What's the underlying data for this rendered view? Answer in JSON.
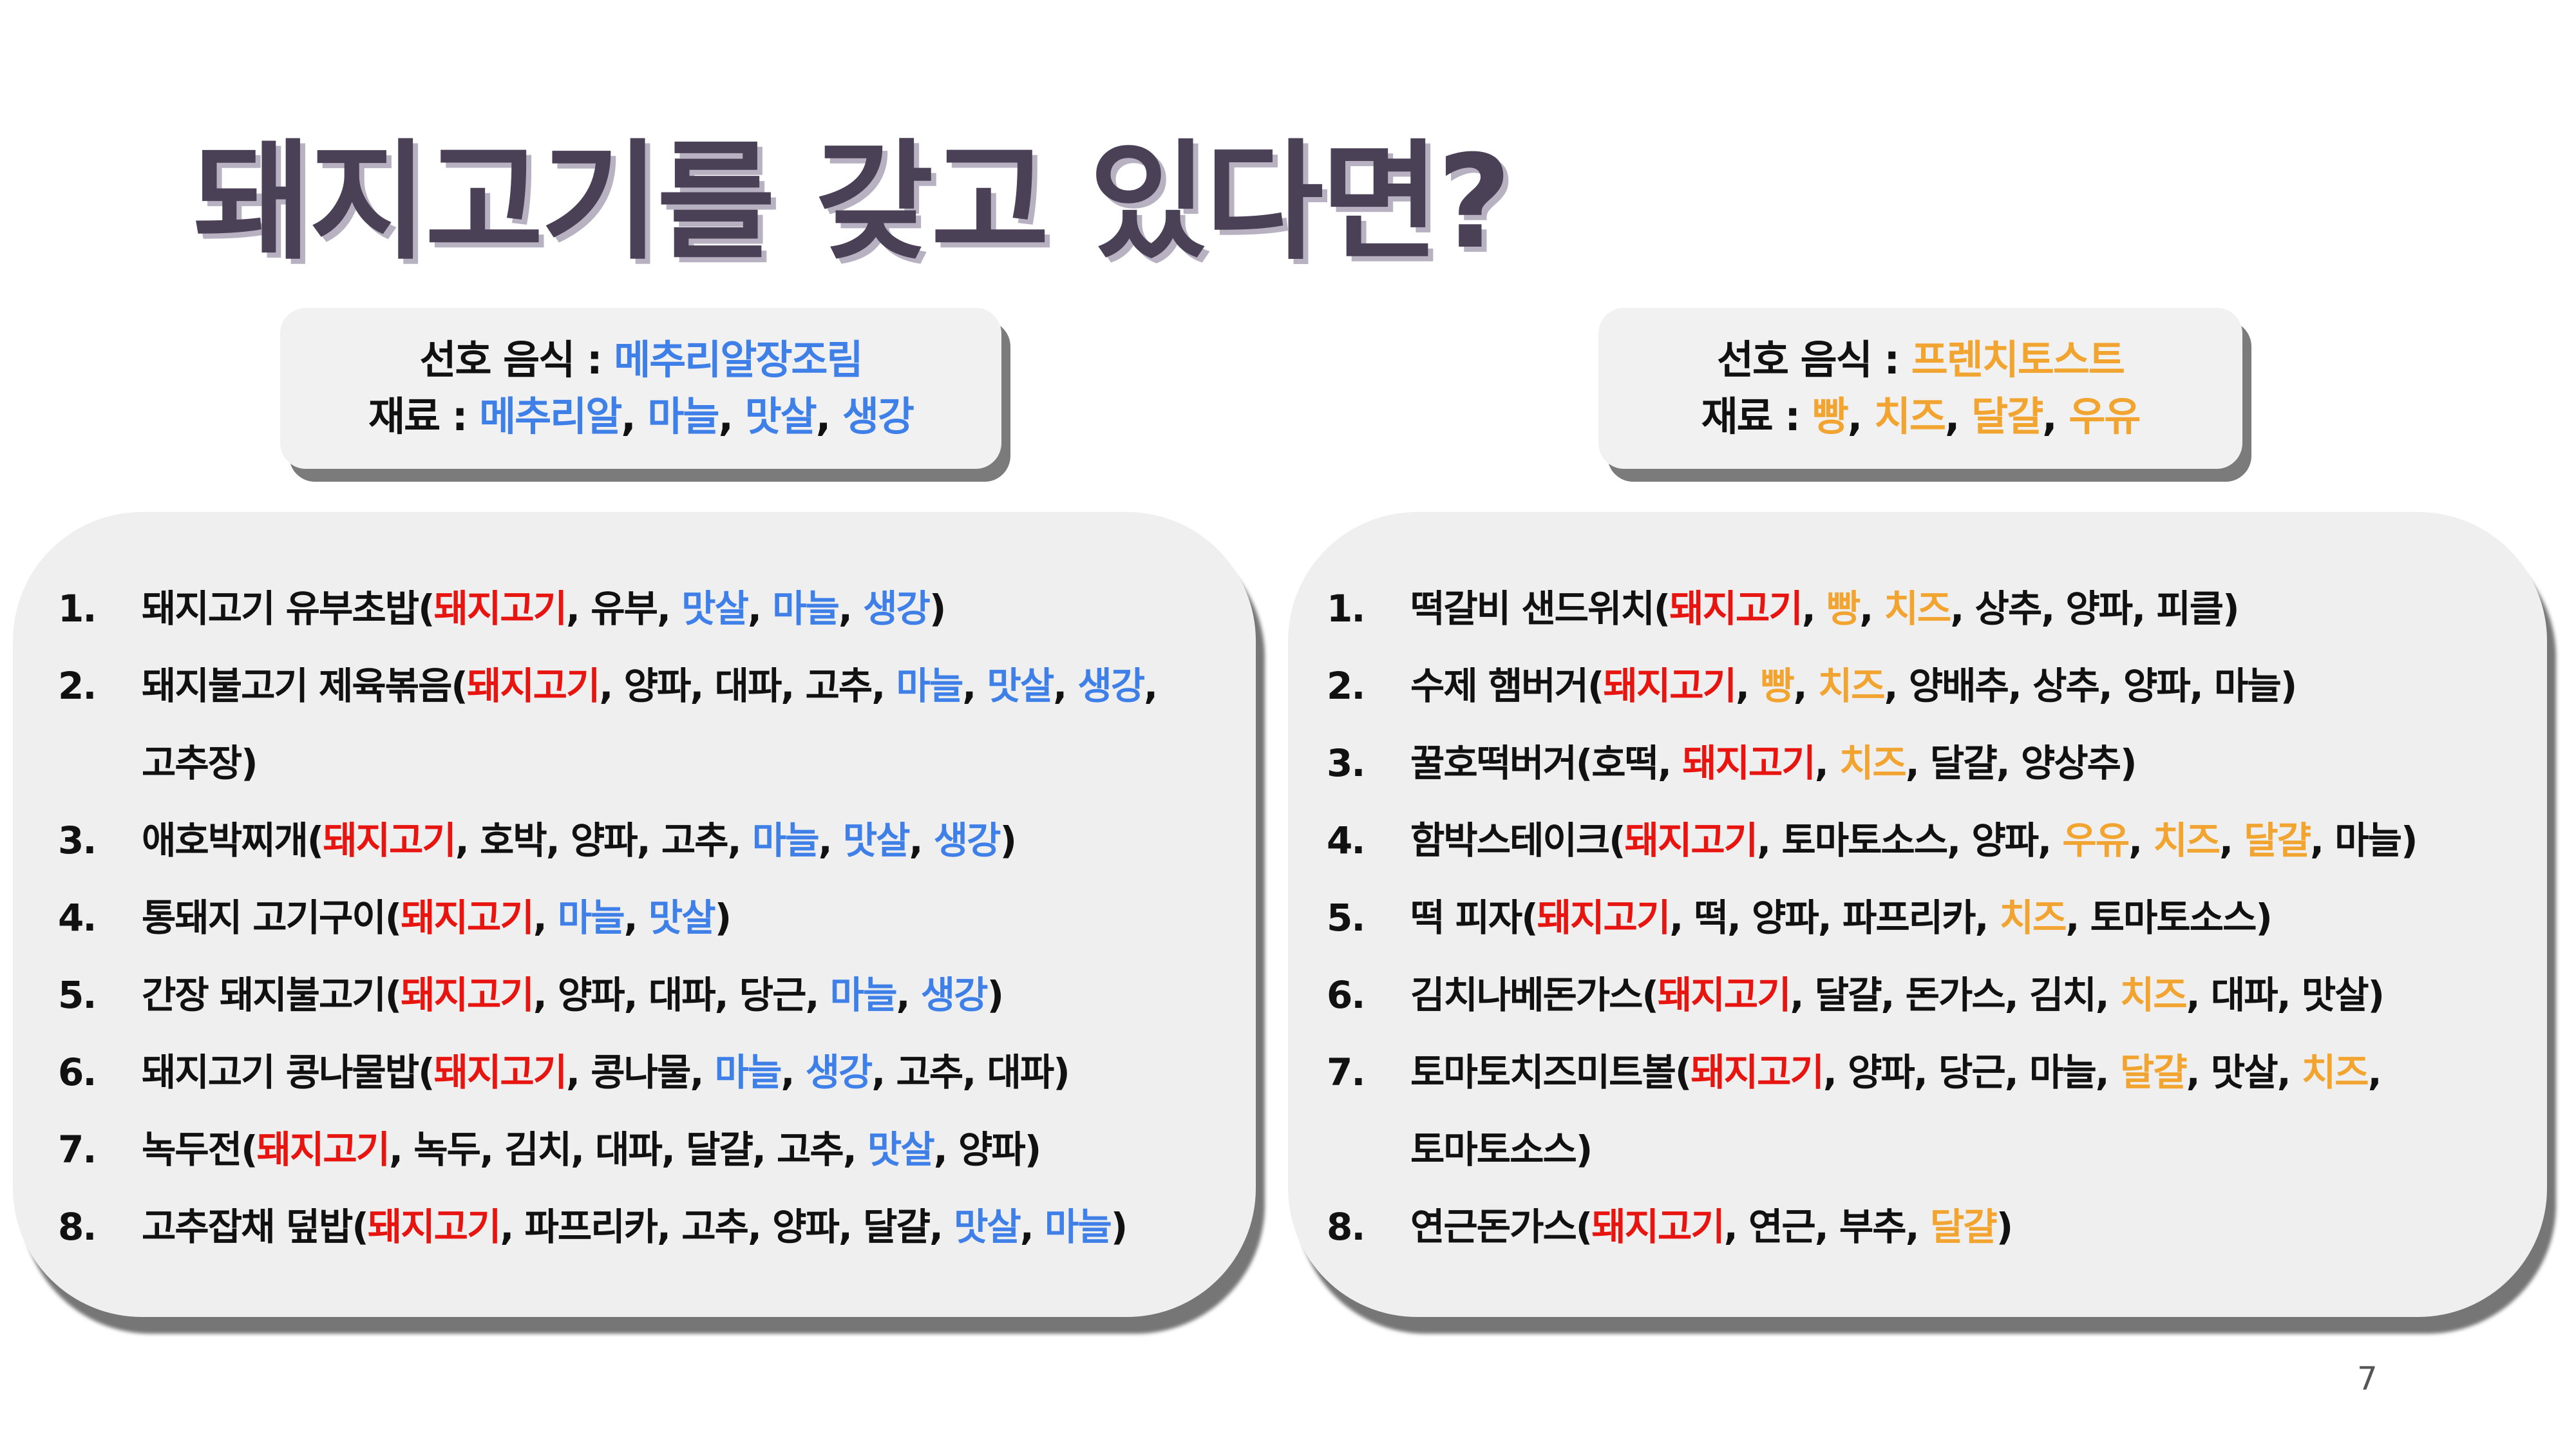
{
  "title": "돼지고기를 갖고 있다면?",
  "page_number": "7",
  "colors": {
    "title": "#4b4157",
    "pork": "#e8140f",
    "left_highlight": "#3f80e8",
    "right_highlight": "#f2a430"
  },
  "left": {
    "info": {
      "food_label": "선호 음식 : ",
      "food": "메추리알장조림",
      "ingredients_label": "재료 : ",
      "ingredients": [
        {
          "t": "메추리알",
          "c": "blue"
        },
        {
          "t": ", "
        },
        {
          "t": "마늘",
          "c": "blue"
        },
        {
          "t": ", "
        },
        {
          "t": "맛살",
          "c": "blue"
        },
        {
          "t": ", "
        },
        {
          "t": "생강",
          "c": "blue"
        }
      ]
    },
    "items": [
      {
        "num": "1.",
        "parts": [
          {
            "t": "돼지고기 유부초밥("
          },
          {
            "t": "돼지고기",
            "c": "red"
          },
          {
            "t": ", 유부, "
          },
          {
            "t": "맛살",
            "c": "blue"
          },
          {
            "t": ", "
          },
          {
            "t": "마늘",
            "c": "blue"
          },
          {
            "t": ", "
          },
          {
            "t": "생강",
            "c": "blue"
          },
          {
            "t": ")"
          }
        ]
      },
      {
        "num": "2.",
        "parts": [
          {
            "t": "돼지불고기 제육볶음("
          },
          {
            "t": "돼지고기",
            "c": "red"
          },
          {
            "t": ", 양파, 대파, 고추, "
          },
          {
            "t": "마늘",
            "c": "blue"
          },
          {
            "t": ", "
          },
          {
            "t": "맛살",
            "c": "blue"
          },
          {
            "t": ", "
          },
          {
            "t": "생강",
            "c": "blue"
          },
          {
            "t": ","
          }
        ]
      },
      {
        "num": "",
        "parts": [
          {
            "t": "고추장)"
          }
        ]
      },
      {
        "num": "3.",
        "parts": [
          {
            "t": "애호박찌개("
          },
          {
            "t": "돼지고기",
            "c": "red"
          },
          {
            "t": ", 호박, 양파, 고추, "
          },
          {
            "t": "마늘",
            "c": "blue"
          },
          {
            "t": ", "
          },
          {
            "t": "맛살",
            "c": "blue"
          },
          {
            "t": ", "
          },
          {
            "t": "생강",
            "c": "blue"
          },
          {
            "t": ")"
          }
        ]
      },
      {
        "num": "4.",
        "parts": [
          {
            "t": "통돼지 고기구이("
          },
          {
            "t": "돼지고기",
            "c": "red"
          },
          {
            "t": ", "
          },
          {
            "t": "마늘",
            "c": "blue"
          },
          {
            "t": ", "
          },
          {
            "t": "맛살",
            "c": "blue"
          },
          {
            "t": ")"
          }
        ]
      },
      {
        "num": "5.",
        "parts": [
          {
            "t": "간장 돼지불고기("
          },
          {
            "t": "돼지고기",
            "c": "red"
          },
          {
            "t": ", 양파, 대파, 당근, "
          },
          {
            "t": "마늘",
            "c": "blue"
          },
          {
            "t": ", "
          },
          {
            "t": "생강",
            "c": "blue"
          },
          {
            "t": ")"
          }
        ]
      },
      {
        "num": "6.",
        "parts": [
          {
            "t": "돼지고기 콩나물밥("
          },
          {
            "t": "돼지고기",
            "c": "red"
          },
          {
            "t": ", 콩나물, "
          },
          {
            "t": "마늘",
            "c": "blue"
          },
          {
            "t": ", "
          },
          {
            "t": "생강",
            "c": "blue"
          },
          {
            "t": ", 고추, 대파)"
          }
        ]
      },
      {
        "num": "7.",
        "parts": [
          {
            "t": "녹두전("
          },
          {
            "t": "돼지고기",
            "c": "red"
          },
          {
            "t": ", 녹두, 김치, 대파, 달걀, 고추, "
          },
          {
            "t": "맛살",
            "c": "blue"
          },
          {
            "t": ", 양파)"
          }
        ]
      },
      {
        "num": "8.",
        "parts": [
          {
            "t": "고추잡채 덮밥("
          },
          {
            "t": "돼지고기",
            "c": "red"
          },
          {
            "t": ", 파프리카, 고추, 양파, 달걀, "
          },
          {
            "t": "맛살",
            "c": "blue"
          },
          {
            "t": ", "
          },
          {
            "t": "마늘",
            "c": "blue"
          },
          {
            "t": ")"
          }
        ]
      }
    ]
  },
  "right": {
    "info": {
      "food_label": "선호 음식 : ",
      "food": "프렌치토스트",
      "ingredients_label": "재료 : ",
      "ingredients": [
        {
          "t": "빵",
          "c": "orange"
        },
        {
          "t": ", "
        },
        {
          "t": "치즈",
          "c": "orange"
        },
        {
          "t": ", "
        },
        {
          "t": "달걀",
          "c": "orange"
        },
        {
          "t": ", "
        },
        {
          "t": "우유",
          "c": "orange"
        }
      ]
    },
    "items": [
      {
        "num": "1.",
        "parts": [
          {
            "t": "떡갈비 샌드위치("
          },
          {
            "t": "돼지고기",
            "c": "red"
          },
          {
            "t": ", "
          },
          {
            "t": "빵",
            "c": "orange"
          },
          {
            "t": ", "
          },
          {
            "t": "치즈",
            "c": "orange"
          },
          {
            "t": ", 상추, 양파, 피클)"
          }
        ]
      },
      {
        "num": "2.",
        "parts": [
          {
            "t": "수제 햄버거("
          },
          {
            "t": "돼지고기",
            "c": "red"
          },
          {
            "t": ", "
          },
          {
            "t": "빵",
            "c": "orange"
          },
          {
            "t": ", "
          },
          {
            "t": "치즈",
            "c": "orange"
          },
          {
            "t": ", 양배추, 상추, 양파, 마늘)"
          }
        ]
      },
      {
        "num": "3.",
        "parts": [
          {
            "t": "꿀호떡버거(호떡, "
          },
          {
            "t": "돼지고기",
            "c": "red"
          },
          {
            "t": ", "
          },
          {
            "t": "치즈",
            "c": "orange"
          },
          {
            "t": ", 달걀, 양상추)"
          }
        ]
      },
      {
        "num": "4.",
        "parts": [
          {
            "t": "함박스테이크("
          },
          {
            "t": "돼지고기",
            "c": "red"
          },
          {
            "t": ", 토마토소스, 양파, "
          },
          {
            "t": "우유",
            "c": "orange"
          },
          {
            "t": ", "
          },
          {
            "t": "치즈",
            "c": "orange"
          },
          {
            "t": ", "
          },
          {
            "t": "달걀",
            "c": "orange"
          },
          {
            "t": ", 마늘)"
          }
        ]
      },
      {
        "num": "5.",
        "parts": [
          {
            "t": "떡 피자("
          },
          {
            "t": "돼지고기",
            "c": "red"
          },
          {
            "t": ", 떡, 양파, 파프리카, "
          },
          {
            "t": "치즈",
            "c": "orange"
          },
          {
            "t": ", 토마토소스)"
          }
        ]
      },
      {
        "num": "6.",
        "parts": [
          {
            "t": "김치나베돈가스("
          },
          {
            "t": "돼지고기",
            "c": "red"
          },
          {
            "t": ", 달걀, 돈가스, 김치, "
          },
          {
            "t": "치즈",
            "c": "orange"
          },
          {
            "t": ", 대파, 맛살)"
          }
        ]
      },
      {
        "num": "7.",
        "parts": [
          {
            "t": "토마토치즈미트볼("
          },
          {
            "t": "돼지고기",
            "c": "red"
          },
          {
            "t": ", 양파, 당근, 마늘, "
          },
          {
            "t": "달걀",
            "c": "orange"
          },
          {
            "t": ", 맛살, "
          },
          {
            "t": "치즈",
            "c": "orange"
          },
          {
            "t": ","
          }
        ]
      },
      {
        "num": "",
        "parts": [
          {
            "t": "토마토소스)"
          }
        ]
      },
      {
        "num": "8.",
        "parts": [
          {
            "t": "연근돈가스("
          },
          {
            "t": "돼지고기",
            "c": "red"
          },
          {
            "t": ", 연근, 부추, "
          },
          {
            "t": "달걀",
            "c": "orange"
          },
          {
            "t": ")"
          }
        ]
      }
    ]
  }
}
